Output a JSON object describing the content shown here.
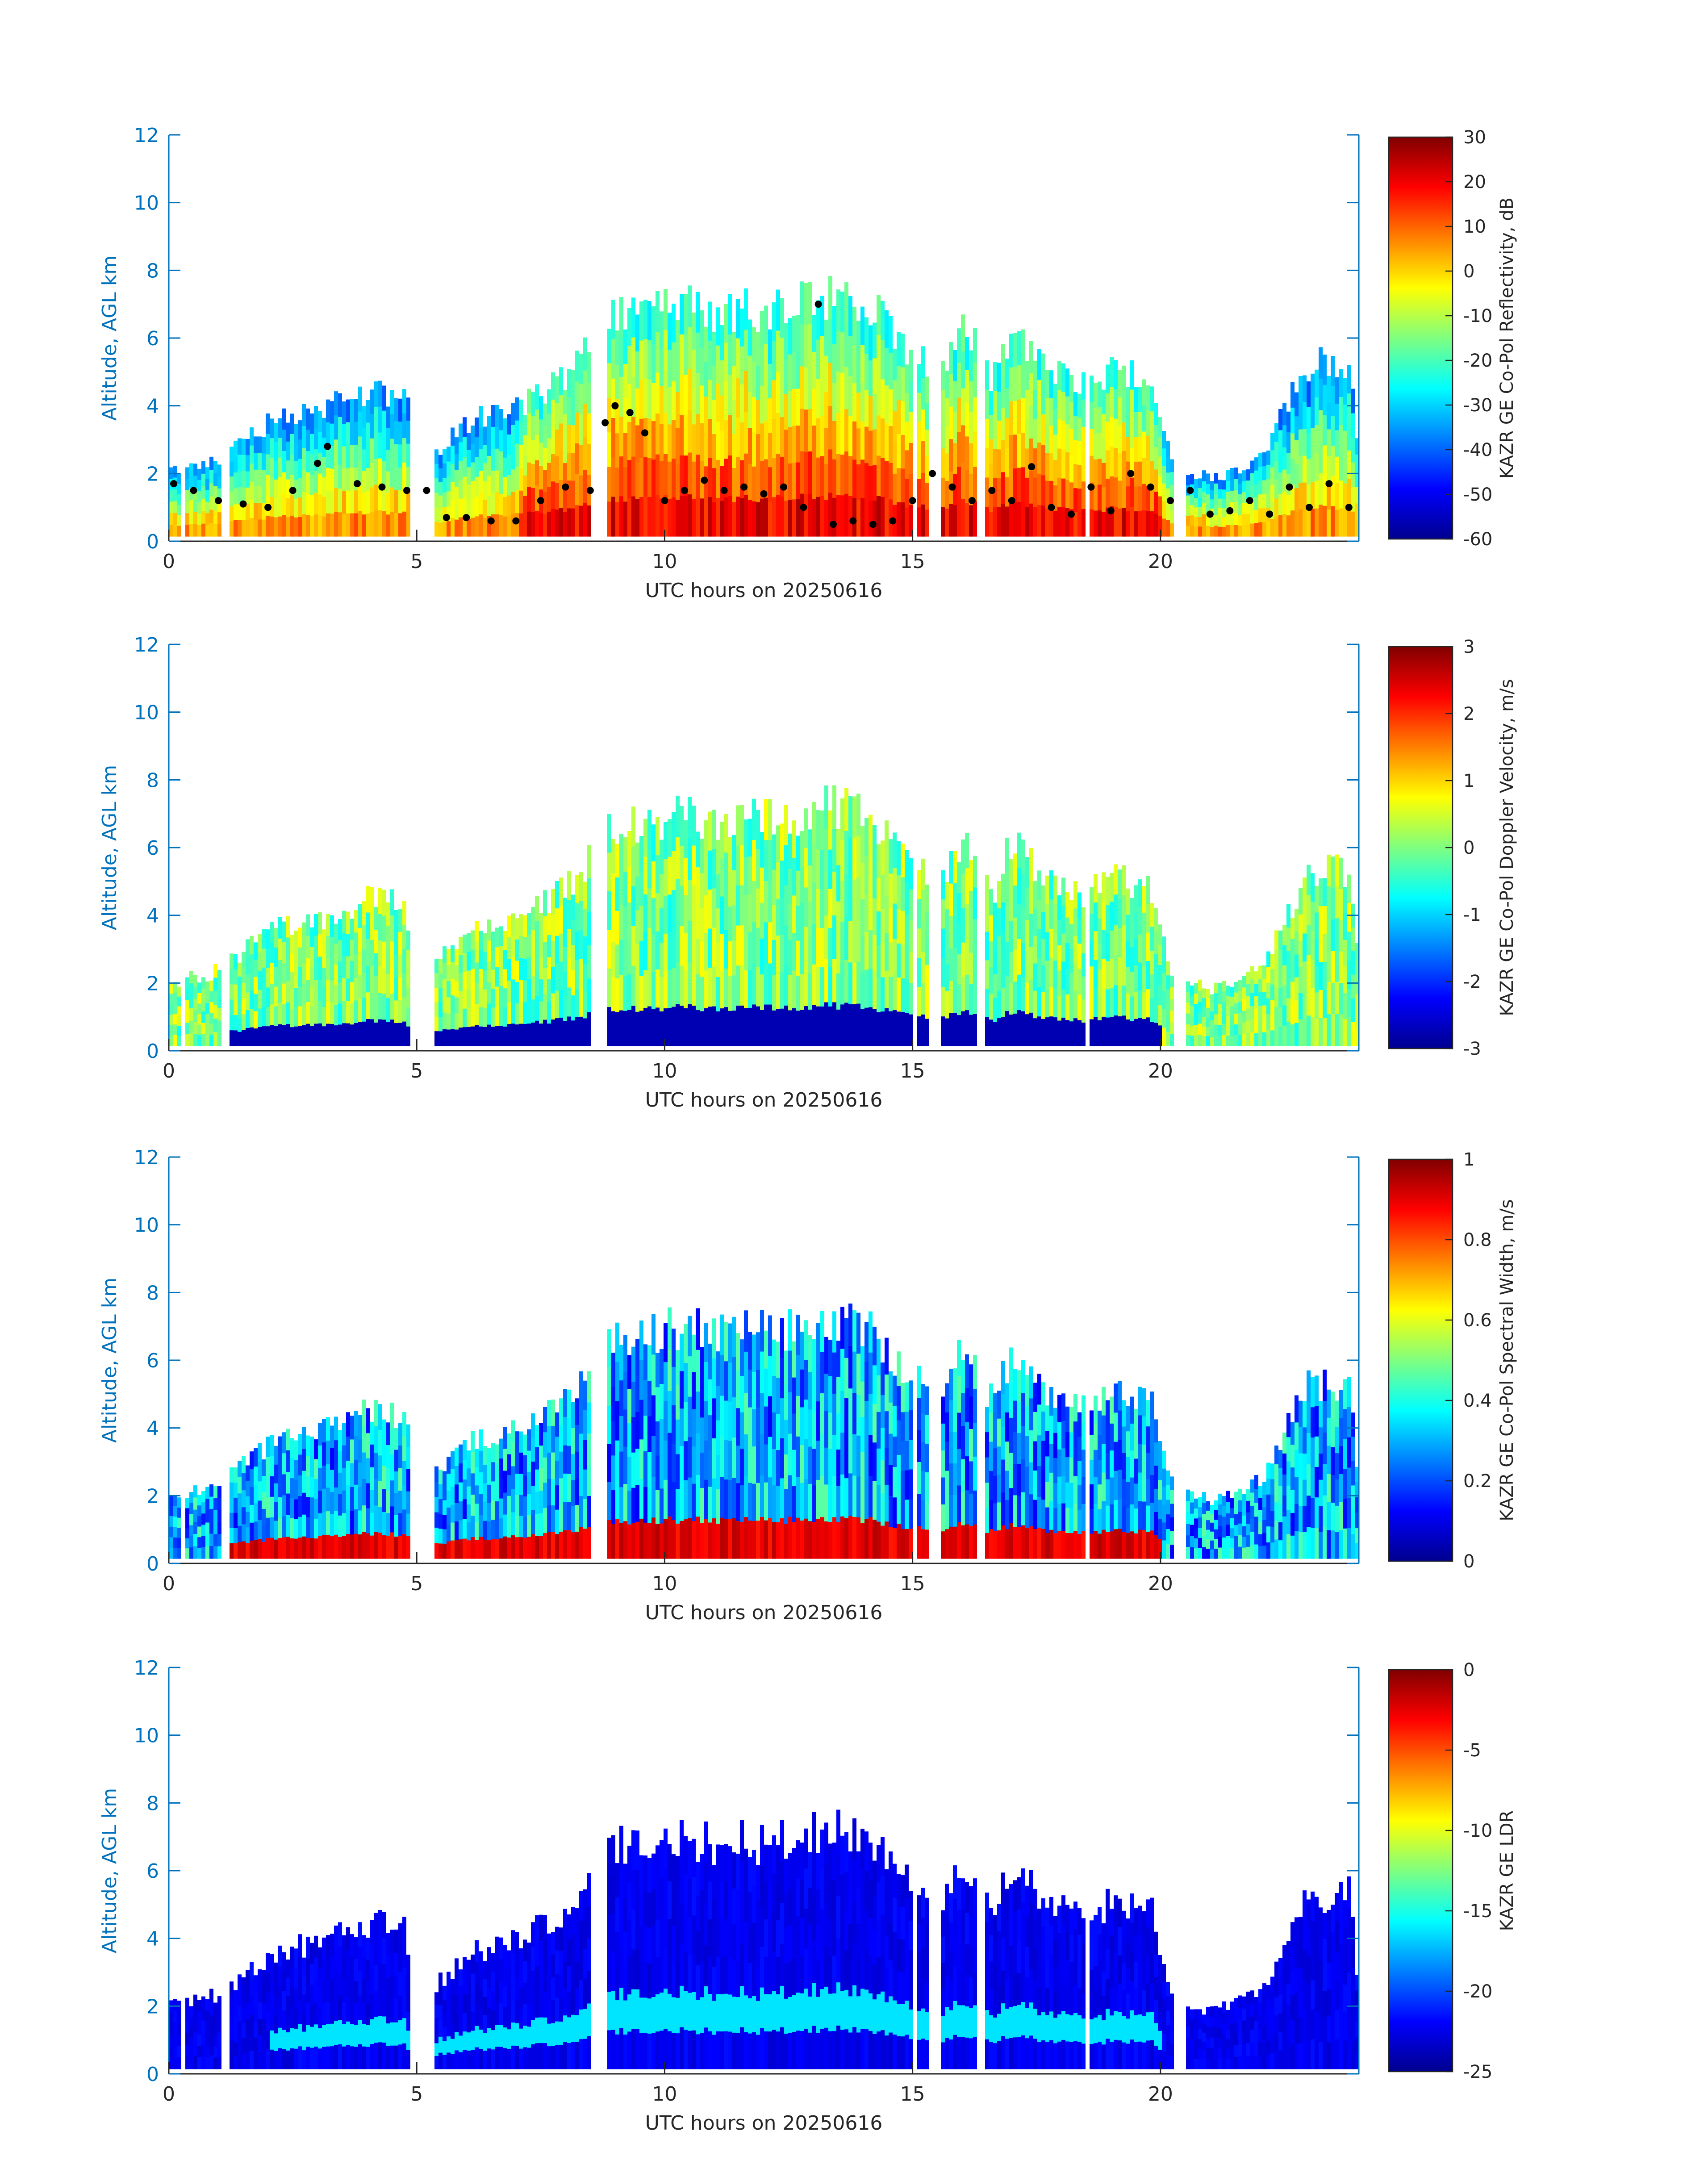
{
  "figure": {
    "colors": {
      "axis": "#0072BD",
      "text": "#262626",
      "background": "#ffffff"
    }
  },
  "chart_data": [
    {
      "type": "heatmap",
      "xlabel": "UTC hours on 20250616",
      "ylabel": "Altitude, AGL km",
      "xlim": [
        0,
        24
      ],
      "ylim": [
        0,
        12
      ],
      "xticks": [
        0,
        5,
        10,
        15,
        20
      ],
      "yticks": [
        0,
        2,
        4,
        6,
        8,
        10,
        12
      ],
      "colorbar": {
        "label": "KAZR GE Co-Pol Reflectivity, dB",
        "range": [
          -60,
          30
        ],
        "ticks": [
          -60,
          -50,
          -40,
          -30,
          -20,
          -10,
          0,
          10,
          20,
          30
        ],
        "colormap": "jet"
      },
      "overlay": {
        "type": "scatter",
        "color": "#000000",
        "x": [
          0.1,
          0.5,
          1.0,
          1.5,
          2.0,
          2.5,
          3.0,
          3.2,
          3.8,
          4.3,
          4.8,
          5.2,
          5.6,
          6.0,
          6.5,
          7.0,
          7.5,
          8.0,
          8.5,
          8.8,
          9.0,
          9.3,
          9.6,
          10.0,
          10.4,
          10.8,
          11.2,
          11.6,
          12.0,
          12.4,
          12.8,
          13.1,
          13.4,
          13.8,
          14.2,
          14.6,
          15.0,
          15.4,
          15.8,
          16.2,
          16.6,
          17.0,
          17.4,
          17.8,
          18.2,
          18.6,
          19.0,
          19.4,
          19.8,
          20.2,
          20.6,
          21.0,
          21.4,
          21.8,
          22.2,
          22.6,
          23.0,
          23.4,
          23.8
        ],
        "y": [
          1.7,
          1.5,
          1.2,
          1.1,
          1.0,
          1.5,
          2.3,
          2.8,
          1.7,
          1.6,
          1.5,
          1.5,
          0.7,
          0.7,
          0.6,
          0.6,
          1.2,
          1.6,
          1.5,
          3.5,
          4.0,
          3.8,
          3.2,
          1.2,
          1.5,
          1.8,
          1.5,
          1.6,
          1.4,
          1.6,
          1.0,
          7.0,
          0.5,
          0.6,
          0.5,
          0.6,
          1.2,
          2.0,
          1.6,
          1.2,
          1.5,
          1.2,
          2.2,
          1.0,
          0.8,
          1.6,
          0.9,
          2.0,
          1.6,
          1.2,
          1.5,
          0.8,
          0.9,
          1.2,
          0.8,
          1.6,
          1.0,
          1.7,
          1.0
        ]
      }
    },
    {
      "type": "heatmap",
      "xlabel": "UTC hours on 20250616",
      "ylabel": "Altitude, AGL km",
      "xlim": [
        0,
        24
      ],
      "ylim": [
        0,
        12
      ],
      "xticks": [
        0,
        5,
        10,
        15,
        20
      ],
      "yticks": [
        0,
        2,
        4,
        6,
        8,
        10,
        12
      ],
      "colorbar": {
        "label": "KAZR GE Co-Pol Doppler Velocity, m/s",
        "range": [
          -3,
          3
        ],
        "ticks": [
          -3,
          -2,
          -1,
          0,
          1,
          2,
          3
        ],
        "colormap": "jet"
      }
    },
    {
      "type": "heatmap",
      "xlabel": "UTC hours on 20250616",
      "ylabel": "Altitude, AGL km",
      "xlim": [
        0,
        24
      ],
      "ylim": [
        0,
        12
      ],
      "xticks": [
        0,
        5,
        10,
        15,
        20
      ],
      "yticks": [
        0,
        2,
        4,
        6,
        8,
        10,
        12
      ],
      "colorbar": {
        "label": "KAZR GE Co-Pol Spectral Width, m/s",
        "range": [
          0,
          1
        ],
        "ticks": [
          0,
          0.2,
          0.4,
          0.6,
          0.8,
          1
        ],
        "colormap": "jet"
      }
    },
    {
      "type": "heatmap",
      "xlabel": "UTC hours on 20250616",
      "ylabel": "Altitude, AGL km",
      "xlim": [
        0,
        24
      ],
      "ylim": [
        0,
        12
      ],
      "xticks": [
        0,
        5,
        10,
        15,
        20
      ],
      "yticks": [
        0,
        2,
        4,
        6,
        8,
        10,
        12
      ],
      "colorbar": {
        "label": "KAZR GE LDR",
        "range": [
          -25,
          0
        ],
        "ticks": [
          -25,
          -20,
          -15,
          -10,
          -5,
          0
        ],
        "colormap": "jet"
      }
    }
  ]
}
